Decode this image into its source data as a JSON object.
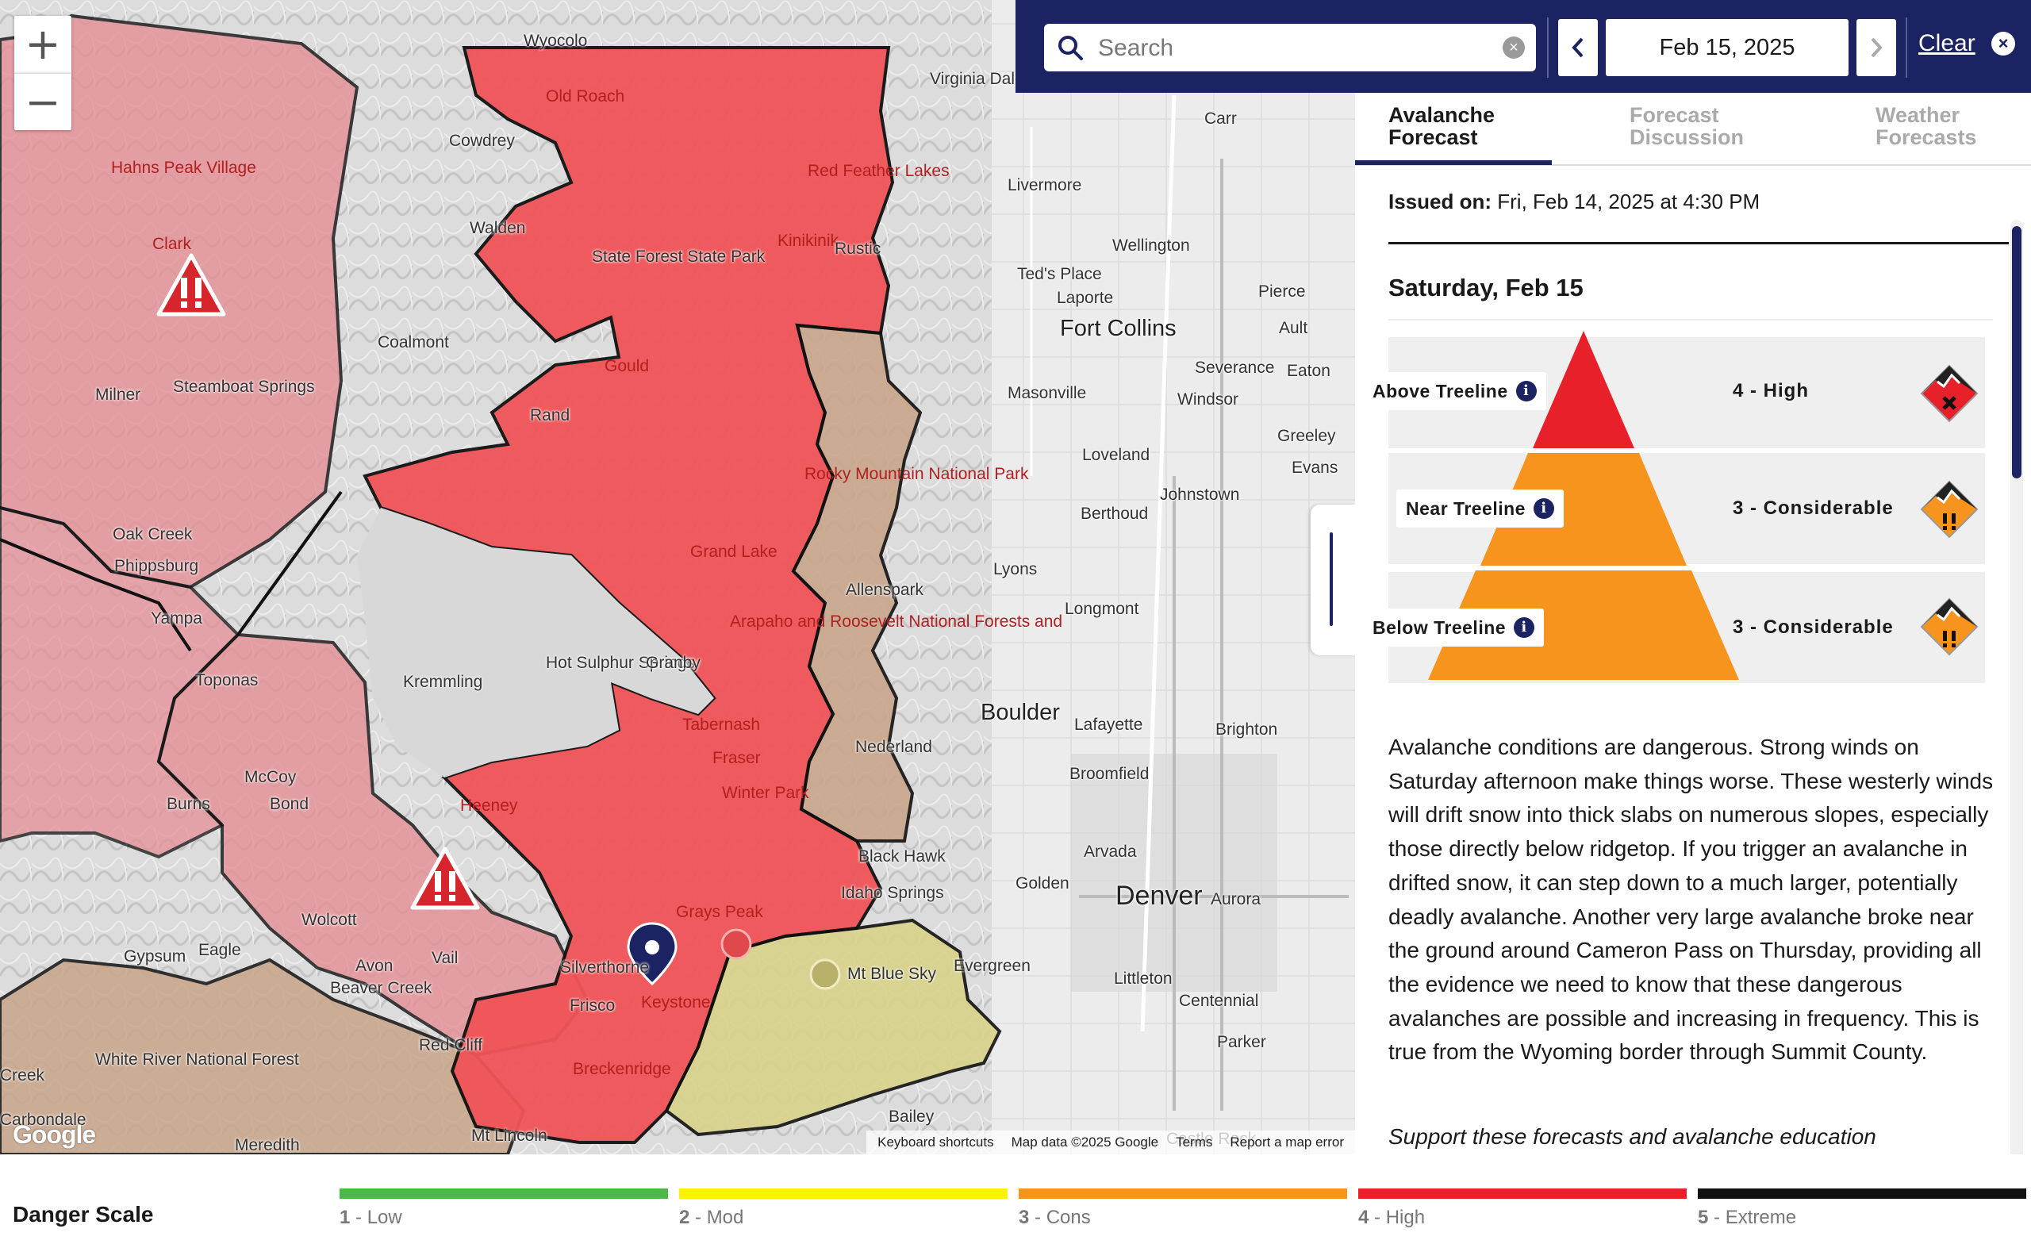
{
  "map": {
    "zoom_in": "+",
    "zoom_out": "−",
    "places": [
      {
        "name": "Wyocolo"
      },
      {
        "name": "Old Roach"
      },
      {
        "name": "Virginia Dale"
      },
      {
        "name": "Cowdrey"
      },
      {
        "name": "Carr"
      },
      {
        "name": "Hahns Peak Village"
      },
      {
        "name": "Livermore"
      },
      {
        "name": "Red Feather Lakes"
      },
      {
        "name": "Walden"
      },
      {
        "name": "Clark"
      },
      {
        "name": "Kinikinik"
      },
      {
        "name": "Rustic"
      },
      {
        "name": "Wellington"
      },
      {
        "name": "State Forest State Park"
      },
      {
        "name": "Ted's Place"
      },
      {
        "name": "Laporte"
      },
      {
        "name": "Pierce"
      },
      {
        "name": "Fort Collins"
      },
      {
        "name": "Ault"
      },
      {
        "name": "Coalmont"
      },
      {
        "name": "Gould"
      },
      {
        "name": "Severance"
      },
      {
        "name": "Eaton"
      },
      {
        "name": "Steamboat Springs"
      },
      {
        "name": "Milner"
      },
      {
        "name": "Masonville"
      },
      {
        "name": "Windsor"
      },
      {
        "name": "Rand"
      },
      {
        "name": "Greeley"
      },
      {
        "name": "Rocky Mountain National Park"
      },
      {
        "name": "Loveland"
      },
      {
        "name": "Evans"
      },
      {
        "name": "Johnstown"
      },
      {
        "name": "Berthoud"
      },
      {
        "name": "Oak Creek"
      },
      {
        "name": "Phippsburg"
      },
      {
        "name": "Grand Lake"
      },
      {
        "name": "Lyons"
      },
      {
        "name": "Allenspark"
      },
      {
        "name": "Yampa"
      },
      {
        "name": "Longmont"
      },
      {
        "name": "Arapaho and Roosevelt National Forests and"
      },
      {
        "name": "Hot Sulphur Springs"
      },
      {
        "name": "Granby"
      },
      {
        "name": "Kremmling"
      },
      {
        "name": "Toponas"
      },
      {
        "name": "Boulder"
      },
      {
        "name": "Tabernash"
      },
      {
        "name": "Lafayette"
      },
      {
        "name": "Brighton"
      },
      {
        "name": "Fraser"
      },
      {
        "name": "Nederland"
      },
      {
        "name": "McCoy"
      },
      {
        "name": "Winter Park"
      },
      {
        "name": "Broomfield"
      },
      {
        "name": "Burns"
      },
      {
        "name": "Bond"
      },
      {
        "name": "Heeney"
      },
      {
        "name": "Black Hawk"
      },
      {
        "name": "Arvada"
      },
      {
        "name": "Idaho Springs"
      },
      {
        "name": "Golden"
      },
      {
        "name": "Denver"
      },
      {
        "name": "Aurora"
      },
      {
        "name": "Wolcott"
      },
      {
        "name": "Grays Peak"
      },
      {
        "name": "Gypsum"
      },
      {
        "name": "Eagle"
      },
      {
        "name": "Vail"
      },
      {
        "name": "Silverthorne"
      },
      {
        "name": "Evergreen"
      },
      {
        "name": "Mt Blue Sky"
      },
      {
        "name": "Avon"
      },
      {
        "name": "Beaver Creek"
      },
      {
        "name": "Keystone"
      },
      {
        "name": "Littleton"
      },
      {
        "name": "Frisco"
      },
      {
        "name": "Centennial"
      },
      {
        "name": "White River National Forest"
      },
      {
        "name": "Red Cliff"
      },
      {
        "name": "Breckenridge"
      },
      {
        "name": "Parker"
      },
      {
        "name": "Creek"
      },
      {
        "name": "Bailey"
      },
      {
        "name": "Carbondale"
      },
      {
        "name": "Meredith"
      },
      {
        "name": "Mt Lincoln"
      },
      {
        "name": "Castle Rock"
      }
    ],
    "attribution": {
      "keyboard": "Keyboard shortcuts",
      "mapdata": "Map data ©2025 Google",
      "terms": "Terms",
      "report": "Report a map error"
    },
    "google_logo": "Google"
  },
  "topbar": {
    "search_placeholder": "Search",
    "date": "Feb 15, 2025",
    "prev": "‹",
    "next": "›",
    "clear": "Clear"
  },
  "tabs": [
    {
      "label_line1": "Avalanche",
      "label_line2": "Forecast",
      "active": true
    },
    {
      "label_line1": "Forecast",
      "label_line2": "Discussion",
      "active": false
    },
    {
      "label_line1": "Weather",
      "label_line2": "Forecasts",
      "active": false
    }
  ],
  "forecast": {
    "issued_label": "Issued on:",
    "issued_value": "Fri, Feb 14, 2025 at 4:30 PM",
    "day": "Saturday, Feb 15",
    "bands": [
      {
        "elevation": "Above Treeline",
        "rating": "4 - High",
        "level": 4,
        "color": "#e8202a"
      },
      {
        "elevation": "Near Treeline",
        "rating": "3 - Considerable",
        "level": 3,
        "color": "#f7941d"
      },
      {
        "elevation": "Below Treeline",
        "rating": "3 - Considerable",
        "level": 3,
        "color": "#f7941d"
      }
    ],
    "summary": "Avalanche conditions are dangerous. Strong winds on Saturday afternoon make things worse. These westerly winds will drift snow into thick slabs on numerous slopes, especially those directly below ridgetop. If you trigger an avalanche in drifted snow, it can step down to a much larger, potentially deadly avalanche. Another very large avalanche broke near the ground around Cameron Pass on Thursday, providing all the evidence we need to know that these dangerous avalanches are possible and increasing in frequency. This is true from the Wyoming border through Summit County.",
    "support": "Support these forecasts and avalanche education"
  },
  "danger_scale": {
    "title": "Danger Scale",
    "levels": [
      {
        "num": "1",
        "name": "Low",
        "color": "#4cb848"
      },
      {
        "num": "2",
        "name": "Mod",
        "color": "#fff200"
      },
      {
        "num": "3",
        "name": "Cons",
        "color": "#f7941d"
      },
      {
        "num": "4",
        "name": "High",
        "color": "#e8202a"
      },
      {
        "num": "5",
        "name": "Extreme",
        "color": "#111111"
      }
    ]
  },
  "colors": {
    "navy": "#1c2363",
    "high": "#e8202a",
    "considerable": "#f7941d",
    "moderate_map": "#d9c98a",
    "low_map": "#c9a58a"
  }
}
